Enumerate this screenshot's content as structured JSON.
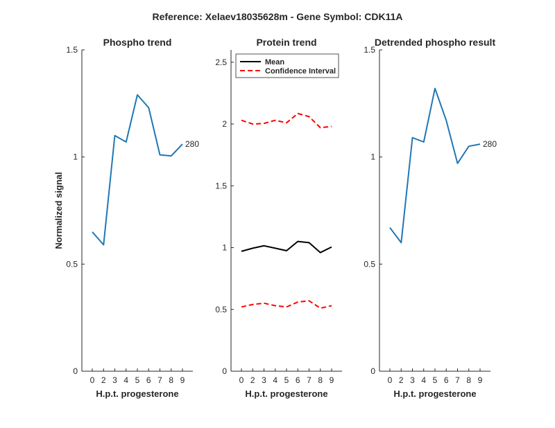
{
  "figure_title": "Reference:  Xelaev18035628m - Gene Symbol:  CDK11A",
  "colors": {
    "trend": "#1f77b4",
    "mean": "#000000",
    "ci": "#ff0000",
    "axis": "#262626"
  },
  "chart_data": [
    {
      "type": "line",
      "title": "Phospho trend",
      "xlabel": "H.p.t. progesterone",
      "ylabel": "Normalized signal",
      "categories": [
        "0",
        "2",
        "3",
        "4",
        "5",
        "6",
        "7",
        "8",
        "9"
      ],
      "ylim": [
        0,
        1.5
      ],
      "yticks": [
        0,
        0.5,
        1,
        1.5
      ],
      "ytick_labels": [
        "0",
        "0.5",
        "1",
        "1.5"
      ],
      "series": [
        {
          "values": [
            0.65,
            0.59,
            1.1,
            1.07,
            1.29,
            1.23,
            1.01,
            1.005,
            1.06
          ],
          "color": "#1f77b4",
          "style": "solid"
        }
      ],
      "end_label": "280",
      "grid": false
    },
    {
      "type": "line",
      "title": "Protein trend",
      "xlabel": "H.p.t. progesterone",
      "ylabel": "",
      "categories": [
        "0",
        "2",
        "3",
        "4",
        "5",
        "6",
        "7",
        "8",
        "9"
      ],
      "ylim": [
        0,
        2.6
      ],
      "yticks": [
        0,
        0.5,
        1,
        1.5,
        2,
        2.5
      ],
      "ytick_labels": [
        "0",
        "0.5",
        "1",
        "1.5",
        "2",
        "2.5"
      ],
      "series": [
        {
          "name": "Mean",
          "values": [
            0.97,
            0.995,
            1.015,
            0.995,
            0.975,
            1.05,
            1.04,
            0.96,
            1.005
          ],
          "color": "#000000",
          "style": "solid"
        },
        {
          "name": "Confidence Interval",
          "values": [
            2.03,
            2.0,
            2.005,
            2.03,
            2.01,
            2.085,
            2.06,
            1.97,
            1.98
          ],
          "color": "#ff0000",
          "style": "dashed"
        },
        {
          "name": "",
          "values": [
            0.52,
            0.54,
            0.55,
            0.53,
            0.52,
            0.56,
            0.57,
            0.51,
            0.53
          ],
          "color": "#ff0000",
          "style": "dashed"
        }
      ],
      "legend": {
        "position": "top-left",
        "entries": [
          "Mean",
          "Confidence Interval"
        ]
      },
      "grid": false
    },
    {
      "type": "line",
      "title": "Detrended phospho result",
      "xlabel": "H.p.t. progesterone",
      "ylabel": "",
      "categories": [
        "0",
        "2",
        "3",
        "4",
        "5",
        "6",
        "7",
        "8",
        "9"
      ],
      "ylim": [
        0,
        1.5
      ],
      "yticks": [
        0,
        0.5,
        1,
        1.5
      ],
      "ytick_labels": [
        "0",
        "0.5",
        "1",
        "1.5"
      ],
      "series": [
        {
          "values": [
            0.67,
            0.6,
            1.09,
            1.07,
            1.32,
            1.17,
            0.97,
            1.05,
            1.06
          ],
          "color": "#1f77b4",
          "style": "solid"
        }
      ],
      "end_label": "280",
      "grid": false
    }
  ]
}
